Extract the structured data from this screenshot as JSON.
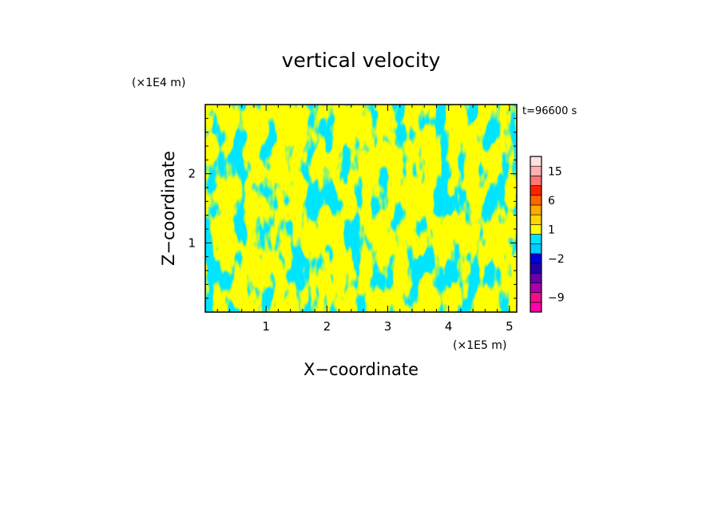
{
  "chart_data": {
    "type": "heatmap",
    "title": "vertical velocity",
    "xlabel": "X−coordinate",
    "ylabel": "Z−coordinate",
    "x_unit": "(×1E5 m)",
    "y_unit": "(×1E4 m)",
    "time_label": "t=96600 s",
    "xlim": [
      0,
      5.12
    ],
    "ylim": [
      0,
      3.0
    ],
    "x_ticks": [
      1,
      2,
      3,
      4,
      5
    ],
    "x_tick_labels": [
      "1",
      "2",
      "3",
      "4",
      "5"
    ],
    "y_ticks": [
      1,
      2
    ],
    "y_tick_labels": [
      "1",
      "2"
    ],
    "field_colors": {
      "positive": "#ffff00",
      "negative": "#00e5ff"
    },
    "colorbar": {
      "colors": [
        "#ff00aa",
        "#ee1188",
        "#aa00aa",
        "#6600aa",
        "#2200aa",
        "#0000dd",
        "#00ccff",
        "#00e5ff",
        "#ffff00",
        "#ffd700",
        "#ffaa00",
        "#ff6600",
        "#ff2200",
        "#ff7777",
        "#ffb0b0",
        "#ffe0e0"
      ],
      "bounds": [
        -12,
        -9,
        -7,
        -5,
        -3,
        -2,
        -1,
        0,
        1,
        2,
        3,
        6,
        9,
        12,
        15,
        18,
        25
      ],
      "tick_values": [
        -9,
        -2,
        1,
        6,
        15
      ],
      "tick_labels": [
        "−9",
        "−2",
        "1",
        "6",
        "15"
      ]
    }
  }
}
